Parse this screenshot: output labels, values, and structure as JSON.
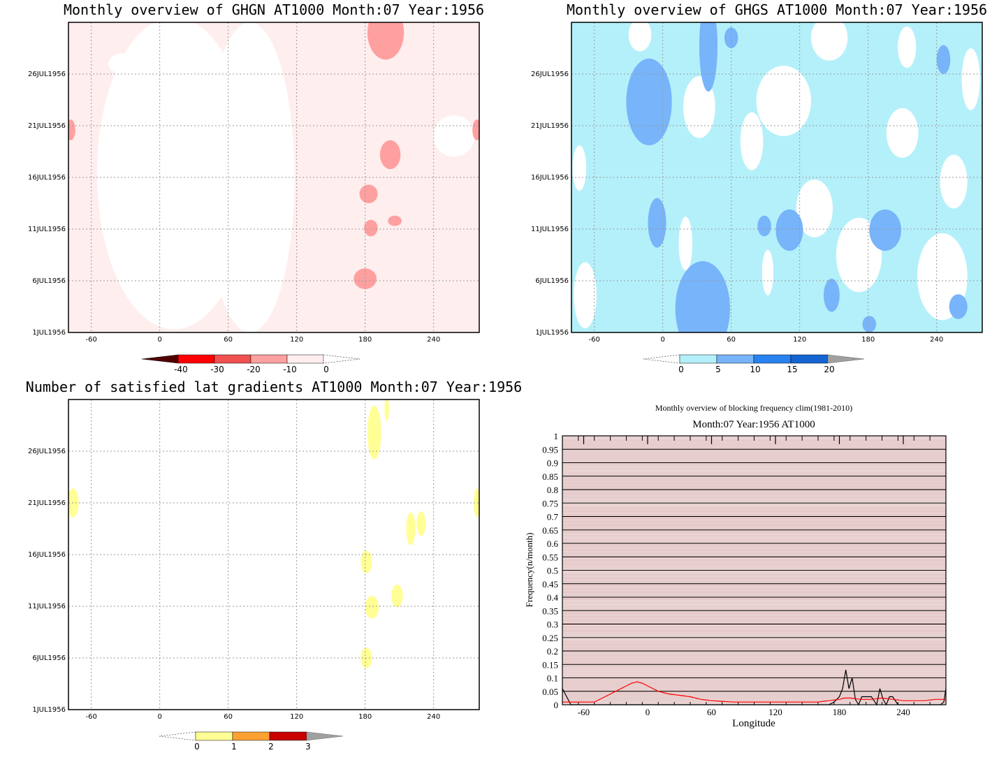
{
  "chart_data": [
    {
      "type": "heatmap",
      "title": "Monthly overview of GHGN AT1000 Month:07 Year:1956",
      "x_ticks": [
        -60,
        0,
        60,
        120,
        180,
        240
      ],
      "xlim": [
        -80,
        280
      ],
      "y_ticks": [
        "1JUL1956",
        "6JUL1956",
        "11JUL1956",
        "16JUL1956",
        "21JUL1956",
        "26JUL1956"
      ],
      "ylim_days": [
        1,
        31
      ],
      "colorbar": {
        "labels": [
          "-40",
          "-30",
          "-20",
          "-10",
          "0"
        ],
        "colors": [
          "#500000",
          "#ff0000",
          "#f05050",
          "#ffa0a0",
          "#ffeeee",
          "#ffffff"
        ]
      },
      "blobs": [
        {
          "lon": 198,
          "day": 30.0,
          "w": 16,
          "h": 2.6,
          "color": "#ffa0a0"
        },
        {
          "lon": 202,
          "day": 18.2,
          "w": 9,
          "h": 1.4,
          "color": "#ffa0a0"
        },
        {
          "lon": 183,
          "day": 14.4,
          "w": 8,
          "h": 0.9,
          "color": "#ffa0a0"
        },
        {
          "lon": 185,
          "day": 11.1,
          "w": 6,
          "h": 0.8,
          "color": "#ffa0a0"
        },
        {
          "lon": 206,
          "day": 11.8,
          "w": 6,
          "h": 0.5,
          "color": "#ffa0a0"
        },
        {
          "lon": 180,
          "day": 6.2,
          "w": 10,
          "h": 1.0,
          "color": "#ffa0a0"
        },
        {
          "lon": -78,
          "day": 20.6,
          "w": 4,
          "h": 1.0,
          "color": "#ffa0a0"
        },
        {
          "lon": 278,
          "day": 20.6,
          "w": 4,
          "h": 1.0,
          "color": "#ffa0a0"
        }
      ]
    },
    {
      "type": "heatmap",
      "title": "Monthly overview of GHGS AT1000 Month:07 Year:1956",
      "x_ticks": [
        -60,
        0,
        60,
        120,
        180,
        240
      ],
      "xlim": [
        -80,
        280
      ],
      "y_ticks": [
        "1JUL1956",
        "6JUL1956",
        "11JUL1956",
        "16JUL1956",
        "21JUL1956",
        "26JUL1956"
      ],
      "ylim_days": [
        1,
        31
      ],
      "colorbar": {
        "labels": [
          "0",
          "5",
          "10",
          "15",
          "20"
        ],
        "colors": [
          "#ffffff",
          "#b4f0fa",
          "#78b4fa",
          "#2882f0",
          "#1464d2",
          "#a0a0a0"
        ]
      },
      "blobs": [
        {
          "lon": -12,
          "day": 23.3,
          "w": 20,
          "h": 4.2,
          "color": "#78b4fa"
        },
        {
          "lon": 40,
          "day": 28.7,
          "w": 8,
          "h": 4.4,
          "color": "#78b4fa"
        },
        {
          "lon": 35,
          "day": 3.3,
          "w": 24,
          "h": 4.6,
          "color": "#78b4fa"
        },
        {
          "lon": -5,
          "day": 11.6,
          "w": 8,
          "h": 2.4,
          "color": "#78b4fa"
        },
        {
          "lon": 111,
          "day": 10.9,
          "w": 12,
          "h": 2.0,
          "color": "#78b4fa"
        },
        {
          "lon": 195,
          "day": 10.9,
          "w": 14,
          "h": 2.0,
          "color": "#78b4fa"
        },
        {
          "lon": 246,
          "day": 27.4,
          "w": 6,
          "h": 1.4,
          "color": "#78b4fa"
        },
        {
          "lon": 148,
          "day": 4.6,
          "w": 7,
          "h": 1.6,
          "color": "#78b4fa"
        },
        {
          "lon": 259,
          "day": 3.5,
          "w": 8,
          "h": 1.2,
          "color": "#78b4fa"
        },
        {
          "lon": 181,
          "day": 1.8,
          "w": 6,
          "h": 0.8,
          "color": "#78b4fa"
        },
        {
          "lon": 89,
          "day": 11.3,
          "w": 6,
          "h": 1.0,
          "color": "#78b4fa"
        },
        {
          "lon": 60,
          "day": 29.5,
          "w": 6,
          "h": 1.0,
          "color": "#78b4fa"
        }
      ],
      "bg_patches": [
        {
          "lon": 146,
          "day": 29.5,
          "w": 16,
          "h": 2.2
        },
        {
          "lon": 32,
          "day": 22.8,
          "w": 14,
          "h": 3.0
        },
        {
          "lon": 106,
          "day": 23.4,
          "w": 24,
          "h": 3.4
        },
        {
          "lon": 210,
          "day": 20.3,
          "w": 14,
          "h": 2.4
        },
        {
          "lon": 172,
          "day": 8.5,
          "w": 20,
          "h": 3.6
        },
        {
          "lon": 245,
          "day": 6.4,
          "w": 22,
          "h": 4.2
        },
        {
          "lon": 78,
          "day": 19.5,
          "w": 10,
          "h": 2.8
        },
        {
          "lon": 133,
          "day": 13.0,
          "w": 16,
          "h": 2.8
        },
        {
          "lon": -68,
          "day": 4.6,
          "w": 10,
          "h": 3.2
        },
        {
          "lon": 255,
          "day": 15.6,
          "w": 12,
          "h": 2.6
        },
        {
          "lon": 20,
          "day": 9.6,
          "w": 6,
          "h": 2.6
        },
        {
          "lon": 270,
          "day": 25.5,
          "w": 8,
          "h": 3.0
        },
        {
          "lon": -20,
          "day": 29.8,
          "w": 10,
          "h": 1.6
        },
        {
          "lon": 214,
          "day": 28.6,
          "w": 8,
          "h": 2.0
        },
        {
          "lon": 92,
          "day": 6.8,
          "w": 5,
          "h": 2.2
        },
        {
          "lon": -73,
          "day": 16.9,
          "w": 6,
          "h": 2.2
        }
      ]
    },
    {
      "type": "heatmap",
      "title": "Number of satisfied lat gradients AT1000 Month:07 Year:1956",
      "x_ticks": [
        -60,
        0,
        60,
        120,
        180,
        240
      ],
      "xlim": [
        -80,
        280
      ],
      "y_ticks": [
        "1JUL1956",
        "6JUL1956",
        "11JUL1956",
        "16JUL1956",
        "21JUL1956",
        "26JUL1956"
      ],
      "ylim_days": [
        1,
        31
      ],
      "colorbar": {
        "labels": [
          "0",
          "1",
          "2",
          "3"
        ],
        "colors": [
          "#ffffff",
          "#ffff96",
          "#ffa032",
          "#c80000",
          "#a0a0a0"
        ]
      },
      "blobs": [
        {
          "lon": 188,
          "day": 27.8,
          "w": 6,
          "h": 2.6,
          "color": "#ffff96"
        },
        {
          "lon": 199,
          "day": 30.1,
          "w": 2,
          "h": 1.2,
          "color": "#ffff96"
        },
        {
          "lon": -76,
          "day": 21.0,
          "w": 5,
          "h": 1.4,
          "color": "#ffff96"
        },
        {
          "lon": 278,
          "day": 21.0,
          "w": 3,
          "h": 1.4,
          "color": "#ffff96"
        },
        {
          "lon": 220,
          "day": 18.5,
          "w": 4,
          "h": 1.6,
          "color": "#ffff96"
        },
        {
          "lon": 229,
          "day": 19.0,
          "w": 4,
          "h": 1.2,
          "color": "#ffff96"
        },
        {
          "lon": 181,
          "day": 15.3,
          "w": 5,
          "h": 1.1,
          "color": "#ffff96"
        },
        {
          "lon": 208,
          "day": 12.0,
          "w": 5,
          "h": 1.1,
          "color": "#ffff96"
        },
        {
          "lon": 186,
          "day": 10.9,
          "w": 6,
          "h": 1.1,
          "color": "#ffff96"
        },
        {
          "lon": 181,
          "day": 6.0,
          "w": 5,
          "h": 1.0,
          "color": "#ffff96"
        }
      ]
    },
    {
      "type": "line",
      "title": "Monthly overview of blocking frequency clim(1981-2010)",
      "subtitle": "Month:07 Year:1956  AT1000",
      "xlabel": "Longitude",
      "ylabel": "Frequency(n/month)",
      "x_ticks": [
        -60,
        0,
        60,
        120,
        180,
        240
      ],
      "xlim": [
        -80,
        280
      ],
      "ylim": [
        0,
        1
      ],
      "y_ticks": [
        "0",
        "0.05",
        "0.1",
        "0.15",
        "0.2",
        "0.25",
        "0.3",
        "0.35",
        "0.4",
        "0.45",
        "0.5",
        "0.55",
        "0.6",
        "0.65",
        "0.7",
        "0.75",
        "0.8",
        "0.85",
        "0.9",
        "0.95",
        "1"
      ],
      "series": [
        {
          "color": "#000000",
          "x": [
            -80,
            -76,
            -72,
            -68,
            -60,
            -40,
            0,
            60,
            120,
            170,
            175,
            180,
            183,
            186,
            189,
            192,
            195,
            198,
            201,
            205,
            210,
            215,
            218,
            221,
            224,
            227,
            230,
            235,
            240,
            260,
            275,
            278,
            280
          ],
          "y": [
            0.06,
            0.03,
            0.0,
            0.0,
            0.0,
            0.0,
            0.0,
            0.0,
            0.0,
            0.0,
            0.01,
            0.03,
            0.06,
            0.13,
            0.06,
            0.1,
            0.02,
            0.0,
            0.03,
            0.03,
            0.03,
            0.0,
            0.06,
            0.02,
            0.0,
            0.03,
            0.03,
            0.0,
            0.0,
            0.0,
            0.0,
            0.01,
            0.06
          ]
        },
        {
          "color": "#ff0000",
          "x": [
            -80,
            -70,
            -60,
            -50,
            -40,
            -30,
            -20,
            -15,
            -10,
            -5,
            0,
            10,
            20,
            30,
            40,
            50,
            60,
            80,
            100,
            120,
            140,
            160,
            170,
            180,
            185,
            190,
            200,
            210,
            220,
            230,
            240,
            250,
            260,
            270,
            280
          ],
          "y": [
            0.01,
            0.01,
            0.01,
            0.01,
            0.03,
            0.05,
            0.07,
            0.08,
            0.085,
            0.08,
            0.07,
            0.05,
            0.04,
            0.035,
            0.03,
            0.02,
            0.015,
            0.01,
            0.01,
            0.01,
            0.01,
            0.01,
            0.015,
            0.02,
            0.025,
            0.025,
            0.02,
            0.02,
            0.025,
            0.02,
            0.015,
            0.015,
            0.015,
            0.02,
            0.02
          ]
        }
      ]
    }
  ]
}
